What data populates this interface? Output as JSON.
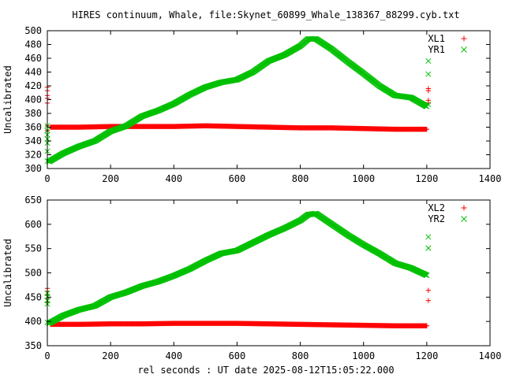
{
  "title": "HIRES continuum, Whale, file:Skynet_60899_Whale_138367_88299.cyb.txt",
  "xlabel": "rel seconds : UT date 2025-08-12T15:05:22.000",
  "colors": {
    "red": "#ff0000",
    "green": "#00c000"
  },
  "chart_data": [
    {
      "type": "scatter",
      "ylabel": "Uncalibrated",
      "xlim": [
        0,
        1400
      ],
      "ylim": [
        300,
        500
      ],
      "xticks": [
        0,
        200,
        400,
        600,
        800,
        1000,
        1200,
        1400
      ],
      "yticks": [
        300,
        320,
        340,
        360,
        380,
        400,
        420,
        440,
        460,
        480,
        500
      ],
      "legend_position": "top-right",
      "series": [
        {
          "name": "XL1",
          "color": "#ff0000",
          "marker": "plus",
          "points": [
            [
              0,
              418
            ],
            [
              0,
              413
            ],
            [
              0,
              406
            ],
            [
              0,
              402
            ],
            [
              0,
              395
            ],
            [
              0,
              362
            ],
            [
              0,
              355
            ],
            [
              10,
              360
            ],
            [
              100,
              360
            ],
            [
              200,
              361
            ],
            [
              300,
              361
            ],
            [
              400,
              361
            ],
            [
              500,
              362
            ],
            [
              600,
              361
            ],
            [
              700,
              360
            ],
            [
              800,
              359
            ],
            [
              900,
              359
            ],
            [
              1000,
              358
            ],
            [
              1100,
              357
            ],
            [
              1200,
              357
            ],
            [
              1205,
              416
            ],
            [
              1205,
              413
            ],
            [
              1205,
              399
            ],
            [
              1205,
              395
            ]
          ]
        },
        {
          "name": "YR1",
          "color": "#00c000",
          "marker": "cross",
          "points": [
            [
              0,
              362
            ],
            [
              0,
              355
            ],
            [
              0,
              349
            ],
            [
              0,
              343
            ],
            [
              0,
              337
            ],
            [
              0,
              325
            ],
            [
              0,
              311
            ],
            [
              5,
              310
            ],
            [
              50,
              322
            ],
            [
              100,
              332
            ],
            [
              150,
              340
            ],
            [
              200,
              354
            ],
            [
              250,
              362
            ],
            [
              300,
              376
            ],
            [
              350,
              384
            ],
            [
              400,
              394
            ],
            [
              450,
              407
            ],
            [
              500,
              418
            ],
            [
              550,
              425
            ],
            [
              600,
              429
            ],
            [
              650,
              440
            ],
            [
              700,
              456
            ],
            [
              750,
              465
            ],
            [
              800,
              478
            ],
            [
              825,
              488
            ],
            [
              850,
              488
            ],
            [
              900,
              473
            ],
            [
              950,
              455
            ],
            [
              1000,
              438
            ],
            [
              1050,
              420
            ],
            [
              1100,
              406
            ],
            [
              1150,
              403
            ],
            [
              1200,
              390
            ],
            [
              1205,
              456
            ],
            [
              1205,
              437
            ],
            [
              1205,
              393
            ]
          ]
        }
      ]
    },
    {
      "type": "scatter",
      "ylabel": "Uncalibrated",
      "xlim": [
        0,
        1400
      ],
      "ylim": [
        350,
        650
      ],
      "xticks": [
        0,
        200,
        400,
        600,
        800,
        1000,
        1200,
        1400
      ],
      "yticks": [
        350,
        400,
        450,
        500,
        550,
        600,
        650
      ],
      "legend_position": "top-right",
      "series": [
        {
          "name": "XL2",
          "color": "#ff0000",
          "marker": "plus",
          "points": [
            [
              0,
              468
            ],
            [
              0,
              462
            ],
            [
              0,
              455
            ],
            [
              0,
              447
            ],
            [
              0,
              440
            ],
            [
              10,
              394
            ],
            [
              100,
              394
            ],
            [
              200,
              395
            ],
            [
              300,
              395
            ],
            [
              400,
              396
            ],
            [
              500,
              396
            ],
            [
              600,
              396
            ],
            [
              700,
              395
            ],
            [
              800,
              394
            ],
            [
              900,
              393
            ],
            [
              1000,
              392
            ],
            [
              1100,
              391
            ],
            [
              1200,
              391
            ],
            [
              1205,
              464
            ],
            [
              1205,
              443
            ]
          ]
        },
        {
          "name": "YR2",
          "color": "#00c000",
          "marker": "cross",
          "points": [
            [
              0,
              458
            ],
            [
              0,
              451
            ],
            [
              0,
              443
            ],
            [
              0,
              436
            ],
            [
              0,
              398
            ],
            [
              5,
              396
            ],
            [
              50,
              412
            ],
            [
              100,
              424
            ],
            [
              150,
              432
            ],
            [
              200,
              450
            ],
            [
              250,
              460
            ],
            [
              300,
              473
            ],
            [
              350,
              482
            ],
            [
              400,
              494
            ],
            [
              450,
              508
            ],
            [
              500,
              525
            ],
            [
              550,
              540
            ],
            [
              600,
              546
            ],
            [
              650,
              562
            ],
            [
              700,
              578
            ],
            [
              750,
              592
            ],
            [
              800,
              608
            ],
            [
              825,
              620
            ],
            [
              850,
              622
            ],
            [
              900,
              600
            ],
            [
              950,
              578
            ],
            [
              1000,
              558
            ],
            [
              1050,
              540
            ],
            [
              1100,
              520
            ],
            [
              1150,
              510
            ],
            [
              1200,
              495
            ],
            [
              1205,
              574
            ],
            [
              1205,
              551
            ]
          ]
        }
      ]
    }
  ]
}
